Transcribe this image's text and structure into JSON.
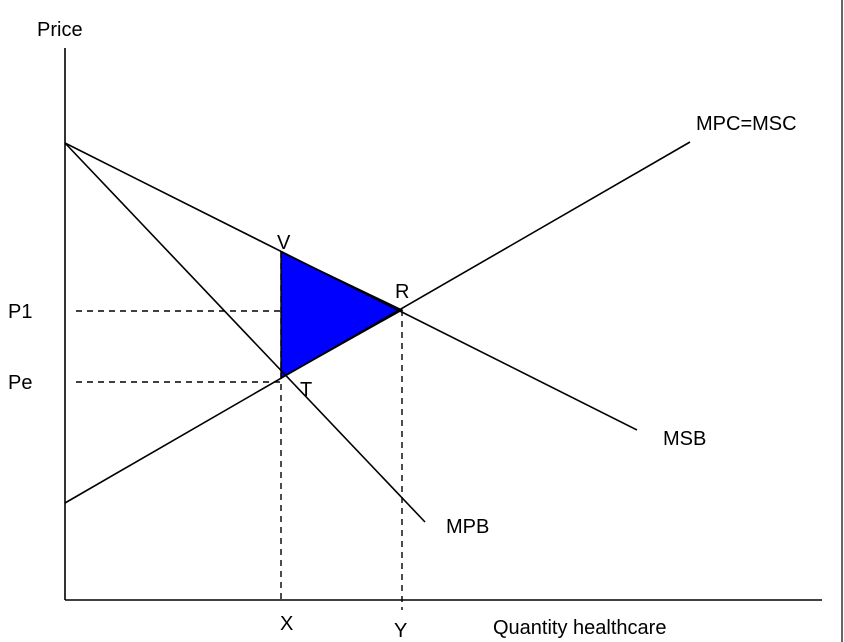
{
  "diagram": {
    "y_axis_label": "Price",
    "x_axis_label": "Quantity healthcare",
    "curves": {
      "mpc_msc": "MPC=MSC",
      "msb": "MSB",
      "mpb": "MPB"
    },
    "price_labels": {
      "p1": "P1",
      "pe": "Pe"
    },
    "quantity_labels": {
      "x": "X",
      "y": "Y"
    },
    "points": {
      "v": "V",
      "r": "R",
      "t": "T"
    },
    "colors": {
      "welfare_area": "#0000FF",
      "lines": "#000000",
      "background": "#FFFFFF"
    }
  }
}
